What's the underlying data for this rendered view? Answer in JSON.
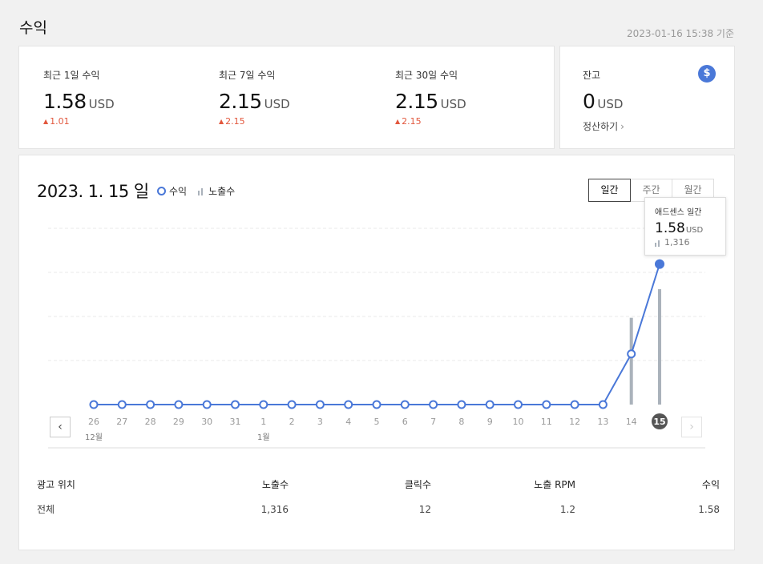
{
  "page": {
    "title": "수익",
    "timestamp": "2023-01-16 15:38 기준"
  },
  "stats": [
    {
      "label": "최근 1일 수익",
      "value": "1.58",
      "unit": "USD",
      "change": "1.01"
    },
    {
      "label": "최근 7일 수익",
      "value": "2.15",
      "unit": "USD",
      "change": "2.15"
    },
    {
      "label": "최근 30일 수익",
      "value": "2.15",
      "unit": "USD",
      "change": "2.15"
    }
  ],
  "balance": {
    "label": "잔고",
    "value": "0",
    "unit": "USD",
    "settle_label": "정산하기",
    "icon": "dollar-icon"
  },
  "chart_header": {
    "date": "2023. 1. 15 일",
    "legend_revenue": "수익",
    "legend_impressions": "노출수",
    "tabs": [
      "일간",
      "주간",
      "월간"
    ],
    "active_tab": "일간"
  },
  "tooltip": {
    "title": "애드센스 일간",
    "value": "1.58",
    "unit": "USD",
    "impressions": "1,316"
  },
  "nav": {
    "prev": "‹",
    "next": "›"
  },
  "colors": {
    "line": "#4a78d8",
    "bar": "#aab2bb",
    "up": "#e2573d",
    "selected_day_bg": "#555555"
  },
  "chart_data": {
    "type": "line",
    "x": [
      "26",
      "27",
      "28",
      "29",
      "30",
      "31",
      "1",
      "2",
      "3",
      "4",
      "5",
      "6",
      "7",
      "8",
      "9",
      "10",
      "11",
      "12",
      "13",
      "14",
      "15"
    ],
    "month_labels": [
      {
        "index": 0,
        "label": "12월"
      },
      {
        "index": 6,
        "label": "1월"
      }
    ],
    "series": [
      {
        "name": "수익",
        "type": "line",
        "values": [
          0,
          0,
          0,
          0,
          0,
          0,
          0,
          0,
          0,
          0,
          0,
          0,
          0,
          0,
          0,
          0,
          0,
          0,
          0,
          0.57,
          1.58
        ]
      },
      {
        "name": "노출수",
        "type": "bar",
        "values": [
          0,
          0,
          0,
          0,
          0,
          0,
          0,
          0,
          0,
          0,
          0,
          0,
          0,
          0,
          0,
          0,
          0,
          0,
          0,
          990,
          1316
        ]
      }
    ],
    "selected_index": 20,
    "grid": true
  },
  "table": {
    "headers": [
      "광고 위치",
      "노출수",
      "클릭수",
      "노출 RPM",
      "수익"
    ],
    "rows": [
      [
        "전체",
        "1,316",
        "12",
        "1.2",
        "1.58"
      ]
    ]
  }
}
